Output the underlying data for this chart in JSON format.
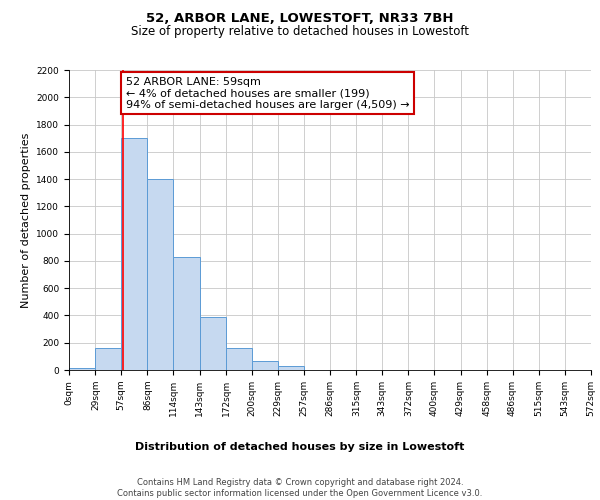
{
  "title": "52, ARBOR LANE, LOWESTOFT, NR33 7BH",
  "subtitle": "Size of property relative to detached houses in Lowestoft",
  "xlabel": "Distribution of detached houses by size in Lowestoft",
  "ylabel": "Number of detached properties",
  "bar_edges": [
    0,
    29,
    57,
    86,
    114,
    143,
    172,
    200,
    229,
    257,
    286,
    315,
    343,
    372,
    400,
    429,
    458,
    486,
    515,
    543,
    572
  ],
  "bar_heights": [
    15,
    160,
    1700,
    1400,
    830,
    390,
    165,
    65,
    30,
    0,
    0,
    0,
    0,
    0,
    0,
    0,
    0,
    0,
    0,
    0
  ],
  "bar_color": "#c6d9f0",
  "bar_edge_color": "#5b9bd5",
  "property_line_x": 59,
  "property_line_color": "#ff0000",
  "annotation_text": "52 ARBOR LANE: 59sqm\n← 4% of detached houses are smaller (199)\n94% of semi-detached houses are larger (4,509) →",
  "annotation_box_color": "#ffffff",
  "annotation_box_edge": "#cc0000",
  "ylim": [
    0,
    2200
  ],
  "yticks": [
    0,
    200,
    400,
    600,
    800,
    1000,
    1200,
    1400,
    1600,
    1800,
    2000,
    2200
  ],
  "tick_labels": [
    "0sqm",
    "29sqm",
    "57sqm",
    "86sqm",
    "114sqm",
    "143sqm",
    "172sqm",
    "200sqm",
    "229sqm",
    "257sqm",
    "286sqm",
    "315sqm",
    "343sqm",
    "372sqm",
    "400sqm",
    "429sqm",
    "458sqm",
    "486sqm",
    "515sqm",
    "543sqm",
    "572sqm"
  ],
  "footer_text": "Contains HM Land Registry data © Crown copyright and database right 2024.\nContains public sector information licensed under the Open Government Licence v3.0.",
  "background_color": "#ffffff",
  "grid_color": "#c8c8c8",
  "title_fontsize": 9.5,
  "subtitle_fontsize": 8.5,
  "axis_label_fontsize": 8,
  "tick_fontsize": 6.5,
  "annotation_fontsize": 8,
  "footer_fontsize": 6
}
